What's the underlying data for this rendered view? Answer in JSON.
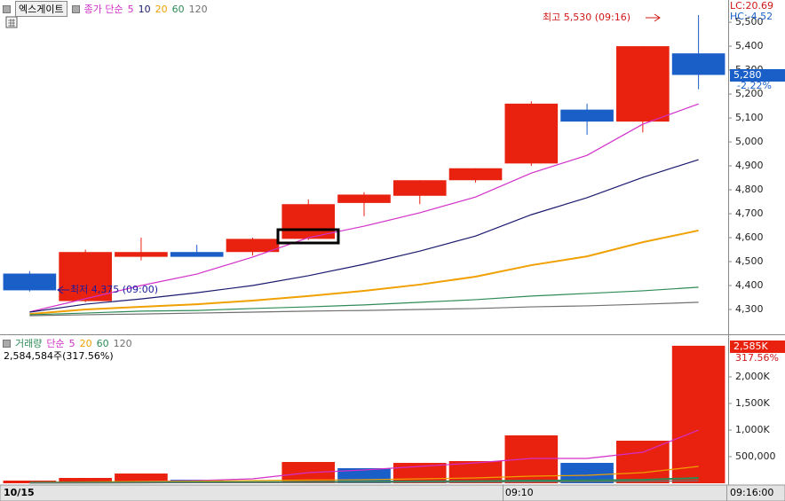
{
  "chart_data": [
    {
      "type": "candlestick",
      "title": "엑스게이트",
      "ma_label": "종가 단순",
      "open": [
        4450,
        4335,
        4520,
        4540,
        4540,
        4595,
        4745,
        4775,
        4840,
        4910,
        5135,
        5085,
        5370
      ],
      "high": [
        4460,
        4550,
        4600,
        4570,
        4600,
        4760,
        4790,
        4840,
        4890,
        5170,
        5160,
        5400,
        5530
      ],
      "low": [
        4375,
        4330,
        4505,
        4520,
        4525,
        4590,
        4690,
        4740,
        4830,
        4900,
        5030,
        5040,
        5220
      ],
      "close": [
        4380,
        4540,
        4540,
        4520,
        4595,
        4740,
        4780,
        4840,
        4890,
        5160,
        5085,
        5400,
        5280
      ],
      "up_color": "#e8220f",
      "down_color": "#1a5fc8",
      "series": [
        {
          "name": "5",
          "color": "#d22fc8",
          "values": [
            4290,
            4345,
            4400,
            4448,
            4519,
            4600,
            4648,
            4704,
            4770,
            4870,
            4944,
            5074,
            5159
          ]
        },
        {
          "name": "10",
          "color": "#1a1a6e",
          "values": [
            4289,
            4322,
            4344,
            4370,
            4400,
            4441,
            4489,
            4544,
            4607,
            4696,
            4767,
            4852,
            4926
          ]
        },
        {
          "name": "20",
          "color": "#f0a000",
          "values": [
            4281,
            4300,
            4311,
            4322,
            4337,
            4356,
            4378,
            4404,
            4437,
            4485,
            4522,
            4581,
            4630
          ]
        },
        {
          "name": "60",
          "color": "#2e8b57",
          "values": [
            4278,
            4285,
            4293,
            4296,
            4304,
            4311,
            4319,
            4330,
            4341,
            4356,
            4367,
            4378,
            4393
          ]
        },
        {
          "name": "120",
          "color": "#707070",
          "values": [
            4274,
            4278,
            4281,
            4285,
            4289,
            4293,
            4296,
            4300,
            4304,
            4311,
            4315,
            4322,
            4330
          ]
        }
      ],
      "ylim": [
        4200,
        5593
      ],
      "yticks": [
        {
          "value": 4300,
          "label": "4,300"
        },
        {
          "value": 4400,
          "label": "4,400"
        },
        {
          "value": 4500,
          "label": "4,500"
        },
        {
          "value": 4600,
          "label": "4,600"
        },
        {
          "value": 4700,
          "label": "4,700"
        },
        {
          "value": 4800,
          "label": "4,800"
        },
        {
          "value": 4900,
          "label": "4,900"
        },
        {
          "value": 5000,
          "label": "5,000"
        },
        {
          "value": 5100,
          "label": "5,100"
        },
        {
          "value": 5200,
          "label": "5,200"
        },
        {
          "value": 5300,
          "label": "5,300"
        },
        {
          "value": 5400,
          "label": "5,400"
        },
        {
          "value": 5500,
          "label": "5,500"
        }
      ],
      "lc_label": "LC:20.69",
      "hc_label": "HC:-4.52",
      "high_annotation": "최고 5,530 (09:16)",
      "low_annotation": "최저 4,375 (09:00)",
      "price_label": "5,280",
      "change_label": "-2.22%"
    },
    {
      "type": "bar",
      "title": "거래량",
      "ma_label": "단순",
      "categories": [
        "10/15",
        null,
        null,
        null,
        null,
        null,
        null,
        null,
        null,
        "09:10",
        null,
        null,
        null
      ],
      "values": [
        50000,
        100000,
        183000,
        67000,
        33000,
        400000,
        283000,
        383000,
        417000,
        900000,
        383000,
        800000,
        2584584
      ],
      "colors": [
        "#e8220f",
        "#e8220f",
        "#e8220f",
        "#1a5fc8",
        "#e8220f",
        "#e8220f",
        "#1a5fc8",
        "#e8220f",
        "#e8220f",
        "#e8220f",
        "#1a5fc8",
        "#e8220f",
        "#e8220f"
      ],
      "series": [
        {
          "name": "5",
          "color": "#d22fc8",
          "values": [
            17000,
            17000,
            33000,
            50000,
            83000,
            200000,
            250000,
            317000,
            383000,
            467000,
            467000,
            583000,
            1000000
          ]
        },
        {
          "name": "20",
          "color": "#f0a000",
          "values": [
            17000,
            25000,
            33000,
            40000,
            50000,
            60000,
            67000,
            83000,
            100000,
            133000,
            150000,
            200000,
            317000
          ]
        },
        {
          "name": "60",
          "color": "#2e8b57",
          "values": [
            10000,
            12000,
            15000,
            18000,
            20000,
            25000,
            30000,
            35000,
            40000,
            50000,
            55000,
            65000,
            100000
          ]
        },
        {
          "name": "120",
          "color": "#707070",
          "values": [
            5000,
            6000,
            8000,
            9000,
            10000,
            12000,
            15000,
            18000,
            20000,
            25000,
            28000,
            33000,
            50000
          ]
        }
      ],
      "ylim": [
        0,
        2750000
      ],
      "yticks": [
        {
          "value": 500000,
          "label": "500,000"
        },
        {
          "value": 1000000,
          "label": "1,000K"
        },
        {
          "value": 1500000,
          "label": "1,500K"
        },
        {
          "value": 2000000,
          "label": "2,000K"
        }
      ],
      "info_label": "2,584,584주(317.56%)",
      "value_label": "2,585K",
      "change_label": "317.56%",
      "time_label": "09:16:00"
    }
  ]
}
